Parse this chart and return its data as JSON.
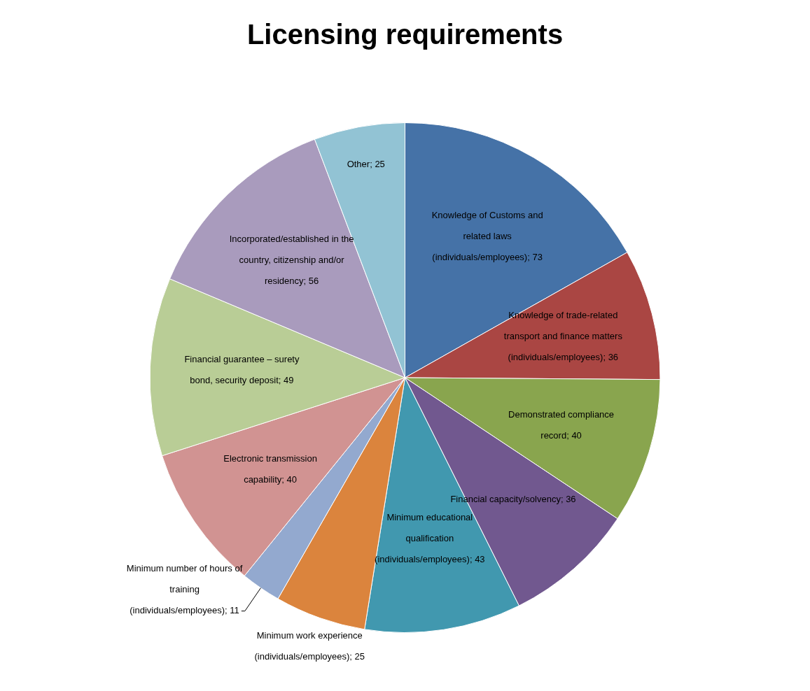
{
  "chart_data": {
    "type": "pie",
    "title": "Licensing requirements",
    "categories": [
      "Knowledge of Customs and related laws (individuals/employees)",
      "Knowledge of trade-related transport and finance matters (individuals/employees)",
      "Demonstrated compliance record",
      "Financial capacity/solvency",
      "Minimum educational qualification (individuals/employees)",
      "Minimum work experience (individuals/employees)",
      "Minimum number of hours of training (individuals/employees)",
      "Electronic transmission capability",
      "Financial guarantee – surety bond, security deposit",
      "Incorporated/established in the country, citizenship and/or residency",
      "Other"
    ],
    "values": [
      73,
      36,
      40,
      36,
      43,
      25,
      11,
      40,
      49,
      56,
      25
    ],
    "colors": [
      "#4572a7",
      "#aa4643",
      "#89a54e",
      "#71588f",
      "#4198af",
      "#db843d",
      "#93a9cf",
      "#d19392",
      "#b9cd96",
      "#a99bbd",
      "#92c3d4"
    ],
    "value_labels": [
      "; 73",
      "; 36",
      "; 40",
      "; 36",
      "; 43",
      "; 25",
      "; 11",
      "; 40",
      "; 49",
      "; 56",
      "; 25"
    ],
    "legend": false
  }
}
